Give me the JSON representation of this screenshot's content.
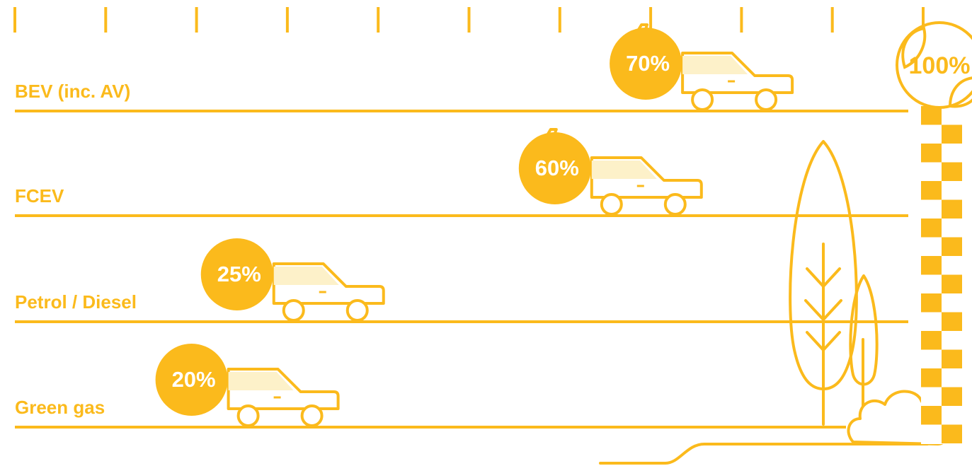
{
  "colors": {
    "accent": "#FBBA1C",
    "window_fill": "#FDF1C9",
    "background": "#FFFFFF"
  },
  "chart_data": {
    "type": "bar",
    "orientation": "horizontal",
    "categories": [
      "BEV (inc. AV)",
      "FCEV",
      "Petrol / Diesel",
      "Green gas"
    ],
    "values": [
      70,
      60,
      25,
      20
    ],
    "value_labels": [
      "70%",
      "60%",
      "25%",
      "20%"
    ],
    "electric": [
      true,
      true,
      false,
      false
    ],
    "xlim": [
      0,
      100
    ],
    "tick_count": 10,
    "finish": {
      "value": 100,
      "label": "100%"
    },
    "grid": false,
    "legend": "none"
  }
}
